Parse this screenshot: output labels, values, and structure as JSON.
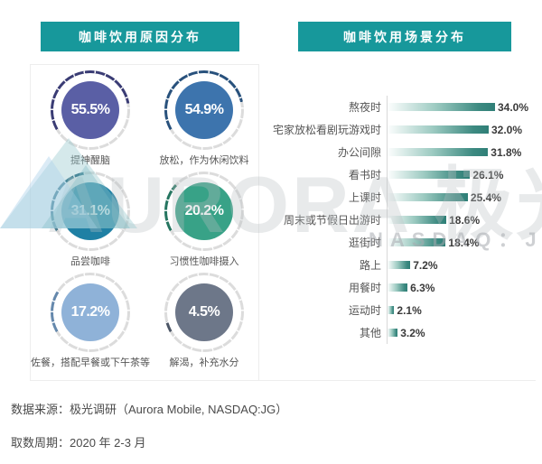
{
  "left_panel": {
    "title": "咖啡饮用原因分布"
  },
  "right_panel": {
    "title": "咖啡饮用场景分布"
  },
  "watermark": {
    "brand": "AURORA 极光",
    "ticker": "NASDAQ：JG"
  },
  "footer": {
    "source_label": "数据来源：极光调研（Aurora Mobile, NASDAQ:JG）",
    "period_label": "取数周期：2020 年 2-3 月"
  },
  "colors": {
    "header_bg": "#17989b",
    "gauge_fill": [
      "#5a5fa5",
      "#3d74ad",
      "#1f80a4",
      "#38a287",
      "#8fb2d8",
      "#6d7789"
    ],
    "gauge_arc": [
      "#3a3c74",
      "#28517c",
      "#155c77",
      "#257560",
      "#6588ac",
      "#4c5666"
    ],
    "gauge_track": "#dcdcdc",
    "bar_gradient": [
      "#fdfefe",
      "#9ccac1",
      "#3d8a81",
      "#2f7f77"
    ],
    "value_text": "#3a3a3a",
    "label_text": "#555555"
  },
  "chart_data": [
    {
      "type": "pie",
      "variant": "donut-gauge-grid",
      "title": "咖啡饮用原因分布",
      "unit": "%",
      "categories": [
        "提神醒脑",
        "放松，作为休闲饮料",
        "品尝咖啡",
        "习惯性咖啡摄入",
        "佐餐，搭配早餐或下午茶等",
        "解渴，补充水分"
      ],
      "values": [
        55.5,
        54.9,
        31.1,
        20.2,
        17.2,
        4.5
      ],
      "legend_position": "below-each-gauge",
      "grid": false
    },
    {
      "type": "bar",
      "orientation": "horizontal",
      "title": "咖啡饮用场景分布",
      "unit": "%",
      "categories": [
        "熬夜时",
        "宅家放松看剧玩游戏时",
        "办公间隙",
        "看书时",
        "上课时",
        "周末或节假日出游时",
        "逛街时",
        "路上",
        "用餐时",
        "运动时",
        "其他"
      ],
      "values": [
        34.0,
        32.0,
        31.8,
        26.1,
        25.4,
        18.6,
        18.4,
        7.2,
        6.3,
        2.1,
        3.2
      ],
      "xlim": [
        0,
        36
      ],
      "grid": false,
      "data_labels": true,
      "xlabel": "",
      "ylabel": ""
    }
  ]
}
